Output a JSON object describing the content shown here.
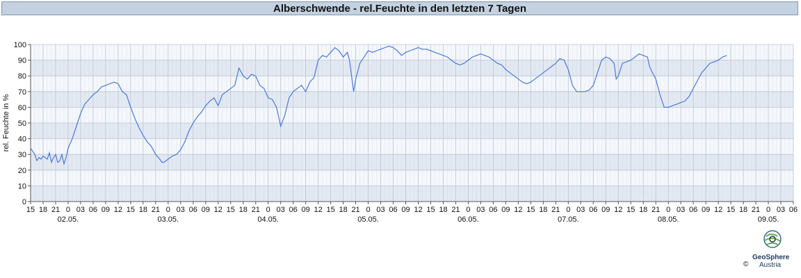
{
  "title": "Alberschwende - rel.Feuchte in den letzten 7 Tagen",
  "copyright": "©",
  "logo": {
    "name": "GeoSphere",
    "country": "Austria",
    "icon": "geosphere-logo-icon"
  },
  "colors": {
    "line": "#4a78d6",
    "band_dark": "#e3e9f2",
    "band_light": "#f4f7fb",
    "grid": "#b9c4d3",
    "title_bg": "#c3d1e0"
  },
  "chart_data": {
    "type": "line",
    "title": "Alberschwende - rel.Feuchte in den letzten 7 Tagen",
    "xlabel": "",
    "ylabel": "rel. Feuchte in %",
    "ylim": [
      0,
      100
    ],
    "yticks": [
      0,
      10,
      20,
      30,
      40,
      50,
      60,
      70,
      80,
      90,
      100
    ],
    "x_unit": "hours since 01.05. 15:00",
    "xlim": [
      0,
      183
    ],
    "grid": true,
    "hour_labels": [
      "15",
      "18",
      "21",
      "0",
      "03",
      "06",
      "09",
      "12",
      "15",
      "18",
      "21",
      "0",
      "03",
      "06",
      "09",
      "12",
      "15",
      "18",
      "21",
      "0",
      "03",
      "06",
      "09",
      "12",
      "15",
      "18",
      "21",
      "0",
      "03",
      "06",
      "09",
      "12",
      "15",
      "18",
      "21",
      "0",
      "03",
      "06",
      "09",
      "12",
      "15",
      "18",
      "21",
      "0",
      "03",
      "06",
      "09",
      "12",
      "15",
      "18",
      "21",
      "0",
      "03",
      "06",
      "09",
      "12",
      "15",
      "18",
      "21",
      "0",
      "03",
      "06"
    ],
    "date_labels": [
      {
        "label": "02.05.",
        "hour": 9
      },
      {
        "label": "03.05.",
        "hour": 33
      },
      {
        "label": "04.05.",
        "hour": 57
      },
      {
        "label": "05.05.",
        "hour": 81
      },
      {
        "label": "06.05.",
        "hour": 105
      },
      {
        "label": "07.05.",
        "hour": 129
      },
      {
        "label": "08.05.",
        "hour": 153
      },
      {
        "label": "09.05.",
        "hour": 177
      }
    ],
    "series": [
      {
        "values": [
          [
            0,
            34
          ],
          [
            1,
            30
          ],
          [
            1.5,
            26
          ],
          [
            2,
            28
          ],
          [
            2.5,
            27
          ],
          [
            3,
            29
          ],
          [
            4,
            27
          ],
          [
            4.5,
            31
          ],
          [
            5,
            25
          ],
          [
            5.5,
            28
          ],
          [
            6,
            30
          ],
          [
            6.5,
            25
          ],
          [
            7,
            26
          ],
          [
            7.5,
            30
          ],
          [
            8,
            24
          ],
          [
            8.5,
            28
          ],
          [
            9,
            34
          ],
          [
            10,
            40
          ],
          [
            11,
            48
          ],
          [
            12,
            56
          ],
          [
            13,
            62
          ],
          [
            14,
            65
          ],
          [
            15,
            68
          ],
          [
            16,
            70
          ],
          [
            17,
            73
          ],
          [
            18,
            74
          ],
          [
            19,
            75
          ],
          [
            20,
            76
          ],
          [
            21,
            75
          ],
          [
            22,
            70
          ],
          [
            23,
            68
          ],
          [
            24,
            60
          ],
          [
            25,
            53
          ],
          [
            26,
            47
          ],
          [
            27,
            42
          ],
          [
            28,
            38
          ],
          [
            29,
            35
          ],
          [
            30,
            30
          ],
          [
            31,
            27
          ],
          [
            31.5,
            25
          ],
          [
            32,
            25
          ],
          [
            33,
            27
          ],
          [
            34,
            29
          ],
          [
            35,
            30
          ],
          [
            36,
            33
          ],
          [
            37,
            38
          ],
          [
            38,
            45
          ],
          [
            39,
            50
          ],
          [
            40,
            54
          ],
          [
            41,
            57
          ],
          [
            42,
            61
          ],
          [
            43,
            64
          ],
          [
            44,
            66
          ],
          [
            45,
            61
          ],
          [
            46,
            68
          ],
          [
            47,
            70
          ],
          [
            48,
            72
          ],
          [
            49,
            74
          ],
          [
            50,
            85
          ],
          [
            51,
            80
          ],
          [
            52,
            78
          ],
          [
            53,
            81
          ],
          [
            54,
            80
          ],
          [
            55,
            74
          ],
          [
            56,
            72
          ],
          [
            57,
            66
          ],
          [
            58,
            65
          ],
          [
            59,
            60
          ],
          [
            60,
            48
          ],
          [
            61,
            55
          ],
          [
            62,
            66
          ],
          [
            63,
            70
          ],
          [
            64,
            72
          ],
          [
            65,
            74
          ],
          [
            66,
            70
          ],
          [
            67,
            76
          ],
          [
            68,
            79
          ],
          [
            69,
            90
          ],
          [
            70,
            93
          ],
          [
            71,
            92
          ],
          [
            72,
            95
          ],
          [
            73,
            98
          ],
          [
            74,
            96
          ],
          [
            75,
            92
          ],
          [
            76,
            95
          ],
          [
            76.5,
            90
          ],
          [
            77,
            80
          ],
          [
            77.5,
            70
          ],
          [
            78,
            78
          ],
          [
            79,
            88
          ],
          [
            80,
            92
          ],
          [
            81,
            96
          ],
          [
            82,
            95
          ],
          [
            83,
            96
          ],
          [
            84,
            97
          ],
          [
            85,
            98
          ],
          [
            86,
            99
          ],
          [
            87,
            98
          ],
          [
            88,
            96
          ],
          [
            89,
            93
          ],
          [
            90,
            95
          ],
          [
            91,
            96
          ],
          [
            92,
            97
          ],
          [
            93,
            98
          ],
          [
            94,
            97
          ],
          [
            95,
            97
          ],
          [
            96,
            96
          ],
          [
            97,
            95
          ],
          [
            98,
            94
          ],
          [
            99,
            93
          ],
          [
            100,
            92
          ],
          [
            101,
            90
          ],
          [
            102,
            88
          ],
          [
            103,
            87
          ],
          [
            104,
            88
          ],
          [
            105,
            90
          ],
          [
            106,
            92
          ],
          [
            107,
            93
          ],
          [
            108,
            94
          ],
          [
            109,
            93
          ],
          [
            110,
            92
          ],
          [
            111,
            90
          ],
          [
            112,
            88
          ],
          [
            113,
            87
          ],
          [
            114,
            84
          ],
          [
            115,
            82
          ],
          [
            116,
            80
          ],
          [
            117,
            78
          ],
          [
            118,
            76
          ],
          [
            119,
            75
          ],
          [
            120,
            76
          ],
          [
            121,
            78
          ],
          [
            122,
            80
          ],
          [
            123,
            82
          ],
          [
            124,
            84
          ],
          [
            125,
            86
          ],
          [
            126,
            88
          ],
          [
            127,
            91
          ],
          [
            128,
            90
          ],
          [
            129,
            84
          ],
          [
            130,
            74
          ],
          [
            131,
            70
          ],
          [
            132,
            70
          ],
          [
            133,
            70
          ],
          [
            134,
            71
          ],
          [
            135,
            74
          ],
          [
            136,
            82
          ],
          [
            137,
            90
          ],
          [
            138,
            92
          ],
          [
            139,
            91
          ],
          [
            140,
            88
          ],
          [
            140.5,
            78
          ],
          [
            141,
            80
          ],
          [
            142,
            88
          ],
          [
            143,
            89
          ],
          [
            144,
            90
          ],
          [
            145,
            92
          ],
          [
            146,
            94
          ],
          [
            147,
            93
          ],
          [
            148,
            92
          ],
          [
            148.5,
            86
          ],
          [
            149,
            83
          ],
          [
            150,
            78
          ],
          [
            151,
            68
          ],
          [
            152,
            60
          ],
          [
            153,
            60
          ],
          [
            154,
            61
          ],
          [
            155,
            62
          ],
          [
            156,
            63
          ],
          [
            157,
            64
          ],
          [
            158,
            67
          ],
          [
            159,
            72
          ],
          [
            160,
            77
          ],
          [
            161,
            82
          ],
          [
            162,
            85
          ],
          [
            163,
            88
          ],
          [
            164,
            89
          ],
          [
            165,
            90
          ],
          [
            166,
            92
          ],
          [
            167,
            93
          ]
        ]
      }
    ]
  }
}
